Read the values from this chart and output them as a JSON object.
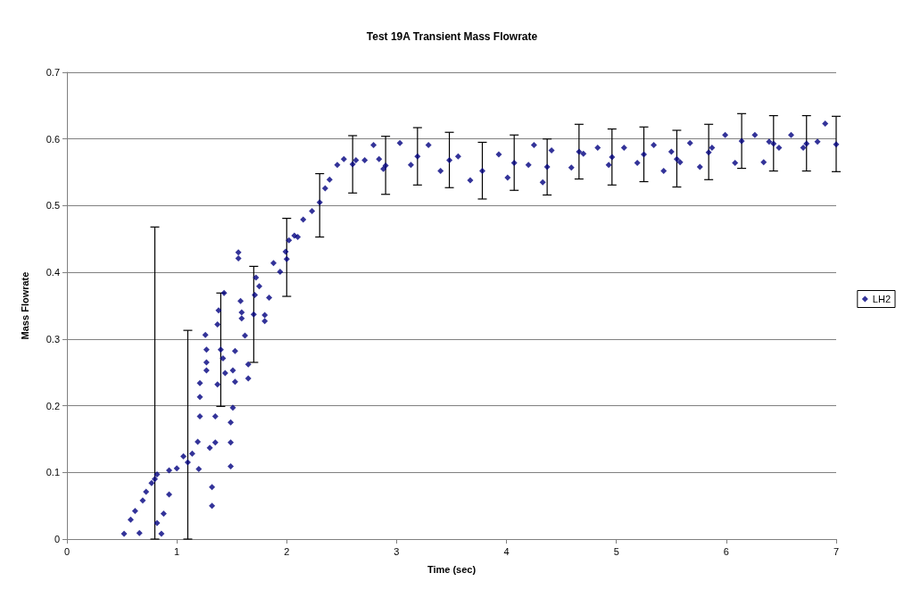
{
  "chart_data": {
    "type": "scatter",
    "title": "Test 19A Transient Mass Flowrate",
    "xlabel": "Time (sec)",
    "ylabel": "Mass Flowrate",
    "xlim": [
      0,
      7
    ],
    "xticks": [
      0,
      1,
      2,
      3,
      4,
      5,
      6,
      7
    ],
    "ylim": [
      0,
      0.7
    ],
    "yticks": [
      0,
      0.1,
      0.2,
      0.3,
      0.4,
      0.5,
      0.6,
      0.7
    ],
    "grid": "y",
    "legend": "right",
    "marker": "diamond",
    "series": [
      {
        "name": "LH2",
        "color": "#000080",
        "x": [
          0.52,
          0.58,
          0.62,
          0.66,
          0.69,
          0.72,
          0.77,
          0.8,
          0.82,
          0.82,
          0.86,
          0.88,
          0.93,
          0.93,
          1.0,
          1.06,
          1.1,
          1.14,
          1.19,
          1.2,
          1.21,
          1.21,
          1.21,
          1.26,
          1.27,
          1.27,
          1.27,
          1.3,
          1.32,
          1.32,
          1.35,
          1.35,
          1.37,
          1.37,
          1.38,
          1.4,
          1.42,
          1.43,
          1.44,
          1.49,
          1.49,
          1.49,
          1.51,
          1.51,
          1.53,
          1.53,
          1.56,
          1.56,
          1.58,
          1.59,
          1.59,
          1.62,
          1.65,
          1.65,
          1.7,
          1.71,
          1.72,
          1.75,
          1.8,
          1.8,
          1.84,
          1.88,
          1.94,
          1.99,
          2.0,
          2.02,
          2.07,
          2.1,
          2.15,
          2.23,
          2.3,
          2.35,
          2.39,
          2.46,
          2.52,
          2.6,
          2.63,
          2.71,
          2.79,
          2.84,
          2.88,
          2.9,
          3.03,
          3.13,
          3.19,
          3.29,
          3.4,
          3.48,
          3.56,
          3.67,
          3.78,
          3.93,
          4.01,
          4.07,
          4.2,
          4.25,
          4.33,
          4.37,
          4.41,
          4.59,
          4.66,
          4.7,
          4.83,
          4.93,
          4.96,
          5.07,
          5.19,
          5.25,
          5.34,
          5.43,
          5.5,
          5.55,
          5.58,
          5.67,
          5.76,
          5.84,
          5.87,
          5.99,
          6.08,
          6.14,
          6.26,
          6.34,
          6.39,
          6.43,
          6.48,
          6.59,
          6.7,
          6.73,
          6.83,
          6.9,
          7.0
        ],
        "values": [
          0.008,
          0.029,
          0.042,
          0.009,
          0.058,
          0.071,
          0.084,
          0.09,
          0.097,
          0.024,
          0.008,
          0.038,
          0.067,
          0.103,
          0.106,
          0.124,
          0.115,
          0.128,
          0.146,
          0.105,
          0.184,
          0.213,
          0.234,
          0.306,
          0.253,
          0.265,
          0.284,
          0.137,
          0.078,
          0.05,
          0.145,
          0.184,
          0.232,
          0.322,
          0.343,
          0.284,
          0.271,
          0.369,
          0.249,
          0.145,
          0.109,
          0.175,
          0.197,
          0.253,
          0.236,
          0.282,
          0.43,
          0.421,
          0.357,
          0.34,
          0.331,
          0.305,
          0.262,
          0.241,
          0.337,
          0.366,
          0.392,
          0.379,
          0.336,
          0.327,
          0.362,
          0.414,
          0.401,
          0.431,
          0.42,
          0.448,
          0.455,
          0.453,
          0.479,
          0.492,
          0.505,
          0.526,
          0.539,
          0.561,
          0.57,
          0.562,
          0.568,
          0.568,
          0.591,
          0.57,
          0.555,
          0.56,
          0.594,
          0.561,
          0.574,
          0.591,
          0.552,
          0.568,
          0.574,
          0.538,
          0.552,
          0.577,
          0.542,
          0.564,
          0.561,
          0.591,
          0.535,
          0.558,
          0.583,
          0.557,
          0.581,
          0.578,
          0.587,
          0.561,
          0.573,
          0.587,
          0.564,
          0.577,
          0.591,
          0.552,
          0.581,
          0.57,
          0.565,
          0.594,
          0.558,
          0.58,
          0.587,
          0.606,
          0.564,
          0.597,
          0.606,
          0.565,
          0.596,
          0.593,
          0.587,
          0.606,
          0.587,
          0.593,
          0.596,
          0.623,
          0.592
        ],
        "errors": [
          null,
          null,
          null,
          null,
          null,
          null,
          null,
          [
            0,
            0.468
          ],
          null,
          null,
          null,
          null,
          null,
          null,
          null,
          null,
          [
            0,
            0.313
          ],
          null,
          null,
          null,
          null,
          null,
          null,
          null,
          null,
          null,
          null,
          null,
          null,
          null,
          null,
          null,
          null,
          null,
          null,
          [
            0.199,
            0.369
          ],
          null,
          null,
          null,
          null,
          null,
          null,
          null,
          null,
          null,
          null,
          null,
          null,
          null,
          null,
          null,
          null,
          null,
          null,
          [
            0.265,
            0.409
          ],
          null,
          null,
          null,
          null,
          null,
          null,
          null,
          null,
          null,
          [
            0.364,
            0.481
          ],
          null,
          null,
          null,
          null,
          null,
          [
            0.453,
            0.548
          ],
          null,
          null,
          null,
          null,
          [
            0.519,
            0.605
          ],
          null,
          null,
          null,
          null,
          null,
          [
            0.517,
            0.604
          ],
          null,
          null,
          [
            0.531,
            0.617
          ],
          null,
          null,
          [
            0.527,
            0.61
          ],
          null,
          null,
          [
            0.51,
            0.595
          ],
          null,
          null,
          [
            0.523,
            0.606
          ],
          null,
          null,
          null,
          [
            0.516,
            0.6
          ],
          null,
          null,
          [
            0.54,
            0.622
          ],
          null,
          null,
          null,
          [
            0.531,
            0.615
          ],
          null,
          null,
          [
            0.536,
            0.618
          ],
          null,
          null,
          null,
          [
            0.528,
            0.613
          ],
          null,
          null,
          null,
          [
            0.539,
            0.622
          ],
          null,
          null,
          null,
          [
            0.556,
            0.638
          ],
          null,
          null,
          null,
          [
            0.552,
            0.635
          ],
          null,
          null,
          null,
          [
            0.552,
            0.635
          ],
          null,
          null,
          [
            0.551,
            0.634
          ]
        ]
      }
    ]
  }
}
